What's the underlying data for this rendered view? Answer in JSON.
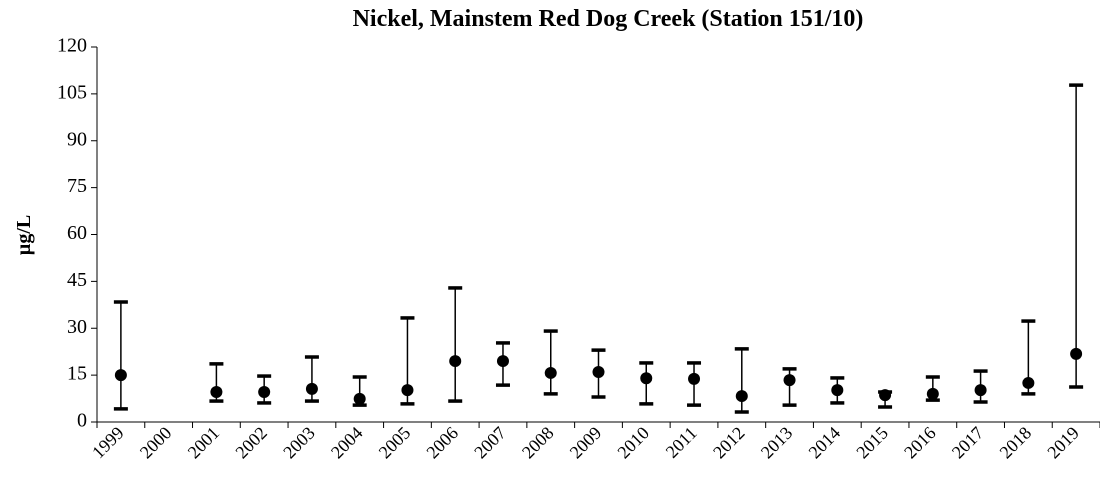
{
  "chart_data": {
    "type": "range",
    "title": "Nickel, Mainstem Red Dog Creek (Station 151/10)",
    "ylabel": "µg/L",
    "categories": [
      "1999",
      "2000",
      "2001",
      "2002",
      "2003",
      "2004",
      "2005",
      "2006",
      "2007",
      "2008",
      "2009",
      "2010",
      "2011",
      "2012",
      "2013",
      "2014",
      "2015",
      "2016",
      "2017",
      "2018",
      "2019"
    ],
    "mean": [
      15,
      null,
      9.6,
      9.6,
      10.6,
      7.4,
      10.2,
      19.5,
      19.5,
      15.7,
      16,
      14,
      13.8,
      8.3,
      13.4,
      10.2,
      8.6,
      9,
      10.2,
      12.5,
      21.8
    ],
    "max": [
      38.4,
      null,
      18.6,
      14.7,
      20.8,
      14.4,
      33.3,
      42.9,
      25.3,
      29.1,
      23,
      18.9,
      18.9,
      23.4,
      17,
      14.1,
      9.6,
      14.4,
      16.3,
      32.3,
      107.8
    ],
    "min": [
      4.2,
      null,
      6.7,
      6.1,
      6.7,
      5.4,
      5.8,
      6.7,
      11.8,
      9,
      8,
      5.8,
      5.4,
      3.2,
      5.4,
      6.1,
      4.8,
      7,
      6.4,
      9,
      11.2
    ],
    "color": "#000000",
    "ylim": [
      0,
      120
    ],
    "yticks": [
      0,
      15,
      30,
      45,
      60,
      75,
      90,
      105,
      120
    ]
  }
}
